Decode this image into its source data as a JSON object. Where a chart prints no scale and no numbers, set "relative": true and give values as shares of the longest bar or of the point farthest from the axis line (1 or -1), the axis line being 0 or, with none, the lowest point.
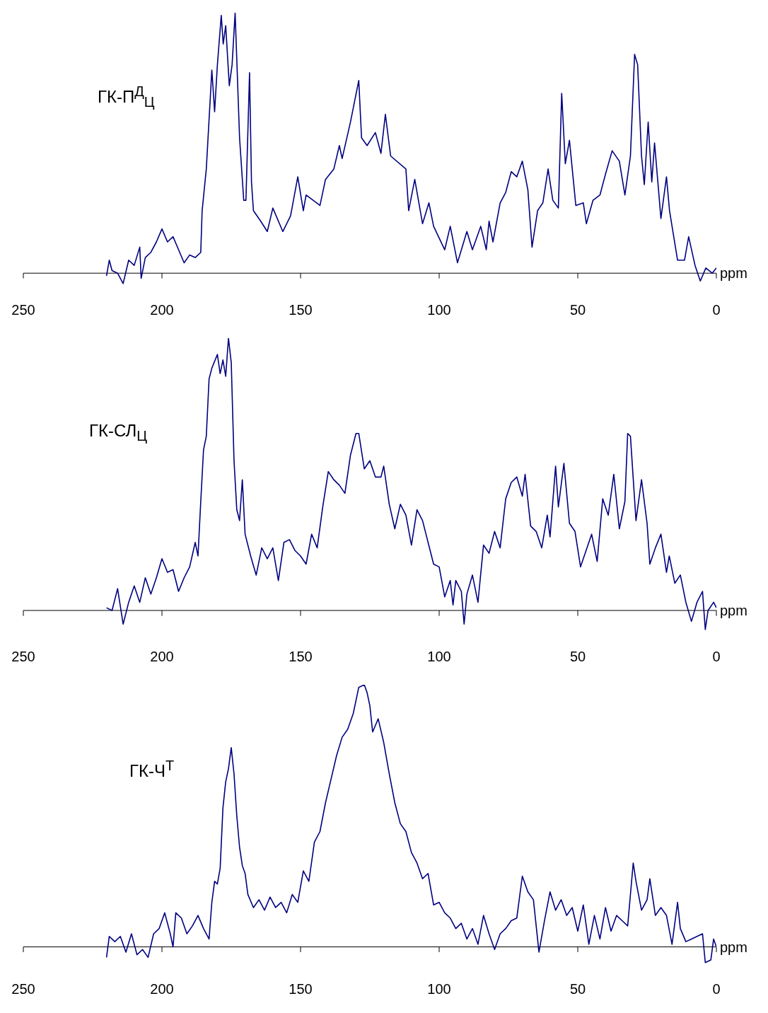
{
  "chart_data": [
    {
      "type": "line",
      "relative": true,
      "color": "#000080",
      "xlabel": "ppm",
      "xlim": [
        250,
        0
      ],
      "xticks": [
        250,
        200,
        150,
        100,
        50,
        0
      ],
      "marker": "none",
      "annotations": [
        "ГК-П$^{Д}$$_{Ц}$"
      ],
      "x": [
        220,
        219,
        218,
        216,
        214,
        212,
        210,
        208,
        207.5,
        206,
        204,
        202,
        200,
        198,
        196,
        194,
        192,
        190,
        188,
        186,
        185.5,
        184,
        182,
        181,
        180,
        178.6,
        177.9,
        177,
        175.7,
        174.7,
        173.6,
        172,
        170.5,
        169.7,
        168.4,
        167.7,
        167,
        164.4,
        162,
        160,
        156.4,
        153.6,
        151,
        149,
        148,
        143,
        141,
        138,
        136,
        135,
        132,
        130.5,
        129,
        128,
        126,
        123,
        121,
        119.4,
        117.5,
        112,
        111,
        108.8,
        106,
        103.7,
        102,
        98,
        96,
        93.4,
        90,
        88,
        85,
        83,
        82,
        80.6,
        78,
        76,
        74,
        72,
        70,
        68,
        66.5,
        64.5,
        62.6,
        60.7,
        59,
        57,
        55.8,
        54.5,
        53,
        50.7,
        48,
        46.9,
        44.5,
        42,
        40,
        37.6,
        35,
        33,
        31,
        29.5,
        28.4,
        27,
        26,
        24.6,
        23.3,
        22.3,
        20,
        18,
        16.9,
        14,
        11.5,
        10,
        7.7,
        5.8,
        3.8,
        1.5,
        0
      ],
      "values": [
        -0.01,
        0.05,
        0.01,
        0.0,
        -0.04,
        0.05,
        0.03,
        0.1,
        -0.02,
        0.06,
        0.08,
        0.12,
        0.17,
        0.12,
        0.14,
        0.09,
        0.04,
        0.07,
        0.06,
        0.08,
        0.24,
        0.4,
        0.78,
        0.62,
        0.8,
        0.99,
        0.88,
        0.95,
        0.72,
        0.8,
        1.0,
        0.52,
        0.28,
        0.28,
        0.77,
        0.35,
        0.24,
        0.2,
        0.16,
        0.25,
        0.16,
        0.22,
        0.37,
        0.24,
        0.3,
        0.26,
        0.36,
        0.4,
        0.49,
        0.44,
        0.58,
        0.66,
        0.74,
        0.52,
        0.49,
        0.54,
        0.46,
        0.61,
        0.45,
        0.4,
        0.24,
        0.36,
        0.19,
        0.27,
        0.18,
        0.09,
        0.18,
        0.04,
        0.16,
        0.09,
        0.18,
        0.09,
        0.2,
        0.12,
        0.27,
        0.31,
        0.39,
        0.37,
        0.43,
        0.32,
        0.1,
        0.24,
        0.27,
        0.4,
        0.28,
        0.25,
        0.69,
        0.42,
        0.51,
        0.26,
        0.27,
        0.19,
        0.28,
        0.3,
        0.38,
        0.47,
        0.43,
        0.3,
        0.45,
        0.84,
        0.8,
        0.45,
        0.34,
        0.58,
        0.35,
        0.5,
        0.21,
        0.37,
        0.24,
        0.05,
        0.05,
        0.14,
        0.03,
        -0.03,
        0.02,
        0.0,
        0.02
      ]
    },
    {
      "type": "line",
      "relative": true,
      "color": "#000080",
      "xlabel": "ppm",
      "xlim": [
        250,
        0
      ],
      "xticks": [
        250,
        200,
        150,
        100,
        50,
        0
      ],
      "marker": "none",
      "annotations": [
        "ГК-СЛ$_{Ц}$"
      ],
      "x": [
        220,
        218,
        216,
        214,
        212,
        210,
        208,
        206,
        204,
        202,
        200,
        198,
        196,
        194,
        192,
        190,
        188,
        187,
        186,
        185,
        184,
        183,
        182,
        180,
        179,
        178,
        177,
        176,
        175,
        174,
        173,
        172,
        171,
        170,
        168,
        166,
        164,
        162,
        160,
        158,
        156,
        154,
        152,
        150,
        148,
        146,
        144,
        142,
        140,
        138,
        136,
        134,
        132,
        130,
        129,
        127,
        125,
        123,
        121,
        120,
        118,
        116,
        114,
        112,
        110,
        108,
        106,
        104,
        102,
        100,
        98,
        96,
        95,
        94,
        92,
        91,
        90,
        88,
        86,
        84,
        82,
        80,
        78,
        76,
        74,
        72,
        70,
        69,
        67,
        65,
        63,
        61,
        60,
        58,
        57,
        55,
        53,
        51,
        49,
        47,
        45,
        43,
        41,
        39,
        37,
        35,
        33,
        32,
        31,
        29,
        27,
        25,
        24,
        22,
        20,
        18,
        17,
        15,
        13,
        11,
        9,
        7,
        5,
        4,
        3,
        1,
        0
      ],
      "values": [
        0.01,
        0.0,
        0.08,
        -0.05,
        0.03,
        0.09,
        0.03,
        0.12,
        0.06,
        0.12,
        0.19,
        0.14,
        0.15,
        0.07,
        0.12,
        0.16,
        0.25,
        0.2,
        0.4,
        0.59,
        0.64,
        0.85,
        0.89,
        0.94,
        0.87,
        0.92,
        0.86,
        1.0,
        0.91,
        0.55,
        0.37,
        0.33,
        0.48,
        0.28,
        0.2,
        0.13,
        0.23,
        0.19,
        0.23,
        0.11,
        0.25,
        0.26,
        0.22,
        0.2,
        0.17,
        0.28,
        0.23,
        0.38,
        0.51,
        0.48,
        0.46,
        0.43,
        0.57,
        0.65,
        0.65,
        0.52,
        0.55,
        0.49,
        0.49,
        0.53,
        0.39,
        0.3,
        0.39,
        0.35,
        0.24,
        0.37,
        0.33,
        0.25,
        0.17,
        0.16,
        0.05,
        0.11,
        0.02,
        0.11,
        0.07,
        -0.05,
        0.06,
        0.13,
        0.03,
        0.24,
        0.21,
        0.29,
        0.23,
        0.41,
        0.47,
        0.49,
        0.42,
        0.5,
        0.31,
        0.29,
        0.23,
        0.35,
        0.27,
        0.53,
        0.38,
        0.54,
        0.32,
        0.29,
        0.16,
        0.22,
        0.28,
        0.18,
        0.41,
        0.35,
        0.5,
        0.3,
        0.4,
        0.65,
        0.64,
        0.33,
        0.48,
        0.32,
        0.17,
        0.23,
        0.28,
        0.14,
        0.2,
        0.1,
        0.13,
        0.03,
        -0.04,
        0.03,
        0.07,
        -0.07,
        0.0,
        0.03,
        0.01
      ]
    },
    {
      "type": "line",
      "relative": true,
      "color": "#000080",
      "xlabel": "ppm",
      "xlim": [
        250,
        0
      ],
      "xticks": [
        250,
        200,
        150,
        100,
        50,
        0
      ],
      "marker": "none",
      "annotations": [
        "ГК-Ч$^{Т}$"
      ],
      "x": [
        220,
        219,
        217,
        215,
        213,
        211,
        209,
        207,
        205,
        203,
        201,
        199,
        197,
        196,
        195,
        193,
        191,
        189,
        187,
        185,
        183,
        182,
        181,
        180,
        179,
        178,
        177,
        176,
        175,
        174,
        173,
        172,
        171,
        170,
        169,
        167,
        165,
        163,
        161,
        159,
        157,
        155,
        153,
        151,
        149,
        147,
        145,
        143,
        141,
        139,
        137,
        135,
        133,
        131,
        129,
        127,
        126,
        125,
        124,
        122,
        120,
        118,
        116,
        114,
        112,
        110,
        108,
        106,
        104,
        102,
        100,
        98,
        96,
        94,
        92,
        90,
        88,
        86,
        84,
        82,
        80,
        78,
        76,
        74,
        72,
        70,
        68,
        66,
        64,
        62,
        60,
        58,
        56,
        54,
        52,
        50,
        48,
        46,
        44,
        42,
        40,
        38,
        36,
        34,
        32,
        30,
        29,
        27,
        25,
        24,
        22,
        20,
        18,
        16,
        14,
        13,
        11,
        9,
        7,
        5,
        4,
        2,
        1,
        0
      ],
      "values": [
        -0.04,
        0.04,
        0.02,
        0.04,
        -0.02,
        0.05,
        -0.03,
        -0.01,
        -0.04,
        0.05,
        0.07,
        0.13,
        0.05,
        0.0,
        0.13,
        0.11,
        0.05,
        0.08,
        0.12,
        0.07,
        0.03,
        0.17,
        0.25,
        0.24,
        0.3,
        0.53,
        0.63,
        0.68,
        0.76,
        0.66,
        0.5,
        0.38,
        0.31,
        0.28,
        0.2,
        0.15,
        0.18,
        0.14,
        0.19,
        0.15,
        0.17,
        0.13,
        0.2,
        0.17,
        0.29,
        0.25,
        0.4,
        0.44,
        0.55,
        0.64,
        0.73,
        0.8,
        0.83,
        0.89,
        0.99,
        1.0,
        0.97,
        0.92,
        0.82,
        0.87,
        0.78,
        0.66,
        0.55,
        0.47,
        0.44,
        0.36,
        0.32,
        0.26,
        0.28,
        0.16,
        0.17,
        0.13,
        0.11,
        0.07,
        0.09,
        0.03,
        0.07,
        0.01,
        0.12,
        0.05,
        -0.01,
        0.05,
        0.07,
        0.1,
        0.11,
        0.27,
        0.21,
        0.18,
        -0.02,
        0.1,
        0.21,
        0.14,
        0.18,
        0.12,
        0.15,
        0.06,
        0.16,
        0.01,
        0.12,
        0.03,
        0.15,
        0.06,
        0.12,
        0.1,
        0.08,
        0.32,
        0.25,
        0.14,
        0.18,
        0.26,
        0.12,
        0.15,
        0.12,
        0.01,
        0.17,
        0.07,
        0.02,
        0.03,
        0.04,
        0.05,
        -0.06,
        -0.05,
        0.03,
        0.0
      ]
    }
  ]
}
